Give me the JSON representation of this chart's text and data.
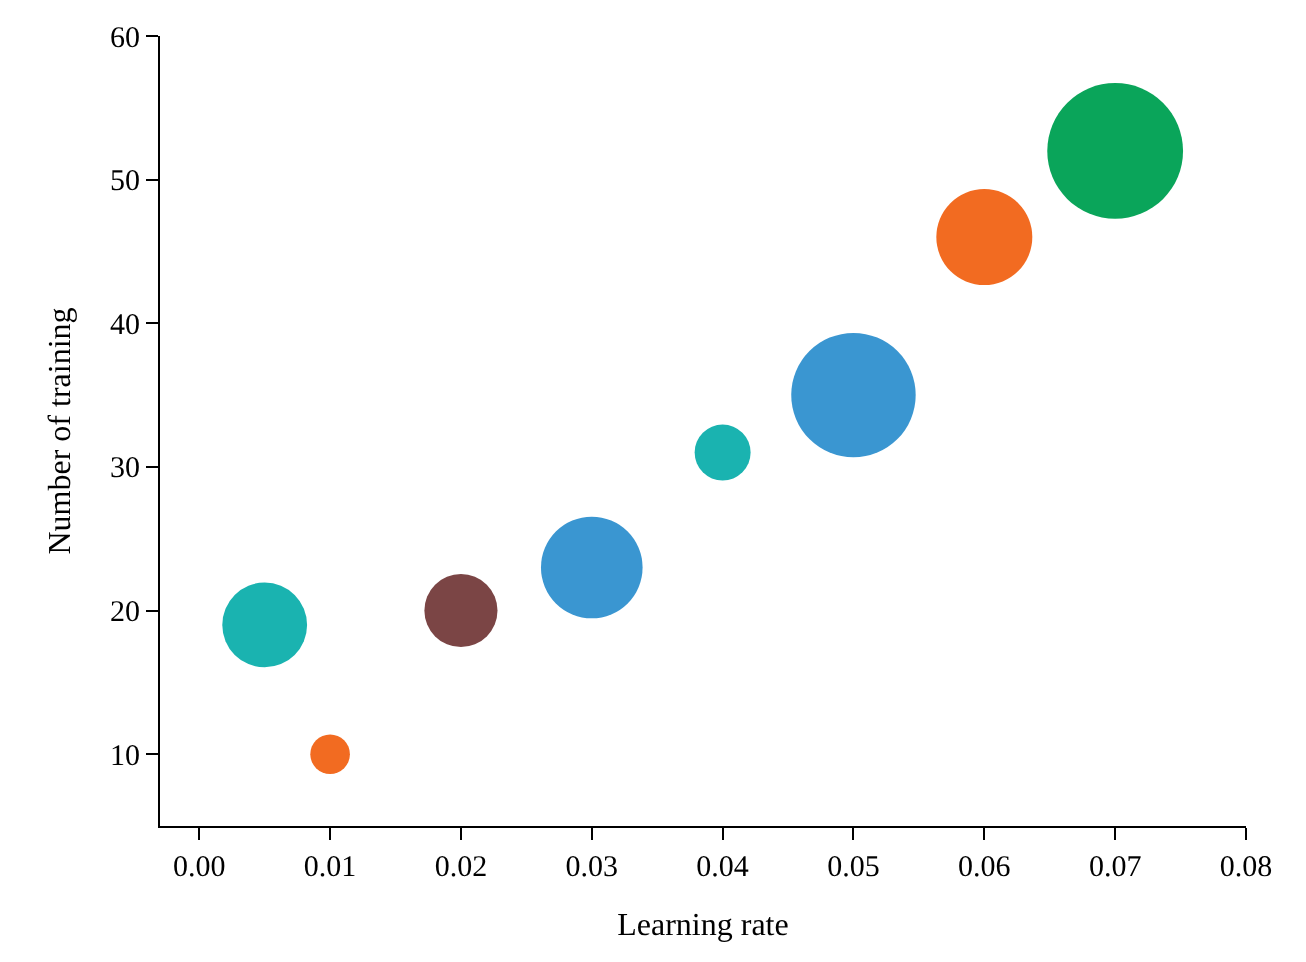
{
  "chart_data": {
    "type": "bubble",
    "xlabel": "Learning rate",
    "ylabel": "Number of training",
    "x": [
      0.005,
      0.01,
      0.02,
      0.03,
      0.04,
      0.05,
      0.06,
      0.07
    ],
    "values": [
      19,
      10,
      20,
      23,
      31,
      35,
      46,
      52
    ],
    "sizes": [
      0.39,
      0.085,
      0.29,
      0.56,
      0.17,
      0.84,
      0.5,
      1
    ],
    "colors": [
      "#1ab3b0",
      "#f26b21",
      "#7b4545",
      "#3a96d1",
      "#1ab3b0",
      "#3a96d1",
      "#f26b21",
      "#0aa55a"
    ],
    "xlim": [
      -0.003,
      0.08
    ],
    "xticks": [
      {
        "value": 0,
        "label": "0.00"
      },
      0.01,
      0.02,
      0.03,
      0.04,
      0.05,
      0.06,
      0.07,
      0.08
    ],
    "ylim": [
      5,
      60
    ],
    "yticks": [
      10,
      20,
      30,
      40,
      50,
      60
    ]
  }
}
